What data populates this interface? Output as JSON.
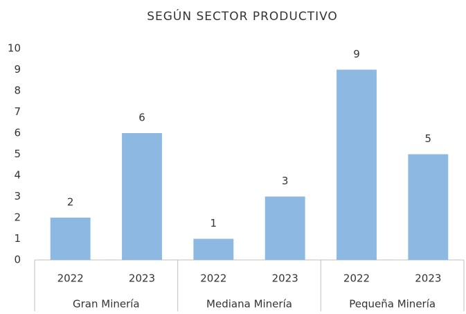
{
  "chart_data": {
    "type": "bar",
    "title": "SEGÚN SECTOR PRODUCTIVO",
    "groups": [
      "Gran Minería",
      "Mediana Minería",
      "Pequeña Minería"
    ],
    "categories": [
      "2022",
      "2023",
      "2022",
      "2023",
      "2022",
      "2023"
    ],
    "values": [
      2,
      6,
      1,
      3,
      9,
      5
    ],
    "color": "#8db8e2",
    "ylim": [
      0,
      10
    ],
    "yticks": [
      0,
      1,
      2,
      3,
      4,
      5,
      6,
      7,
      8,
      9,
      10
    ],
    "grid": false,
    "data_labels": true
  }
}
